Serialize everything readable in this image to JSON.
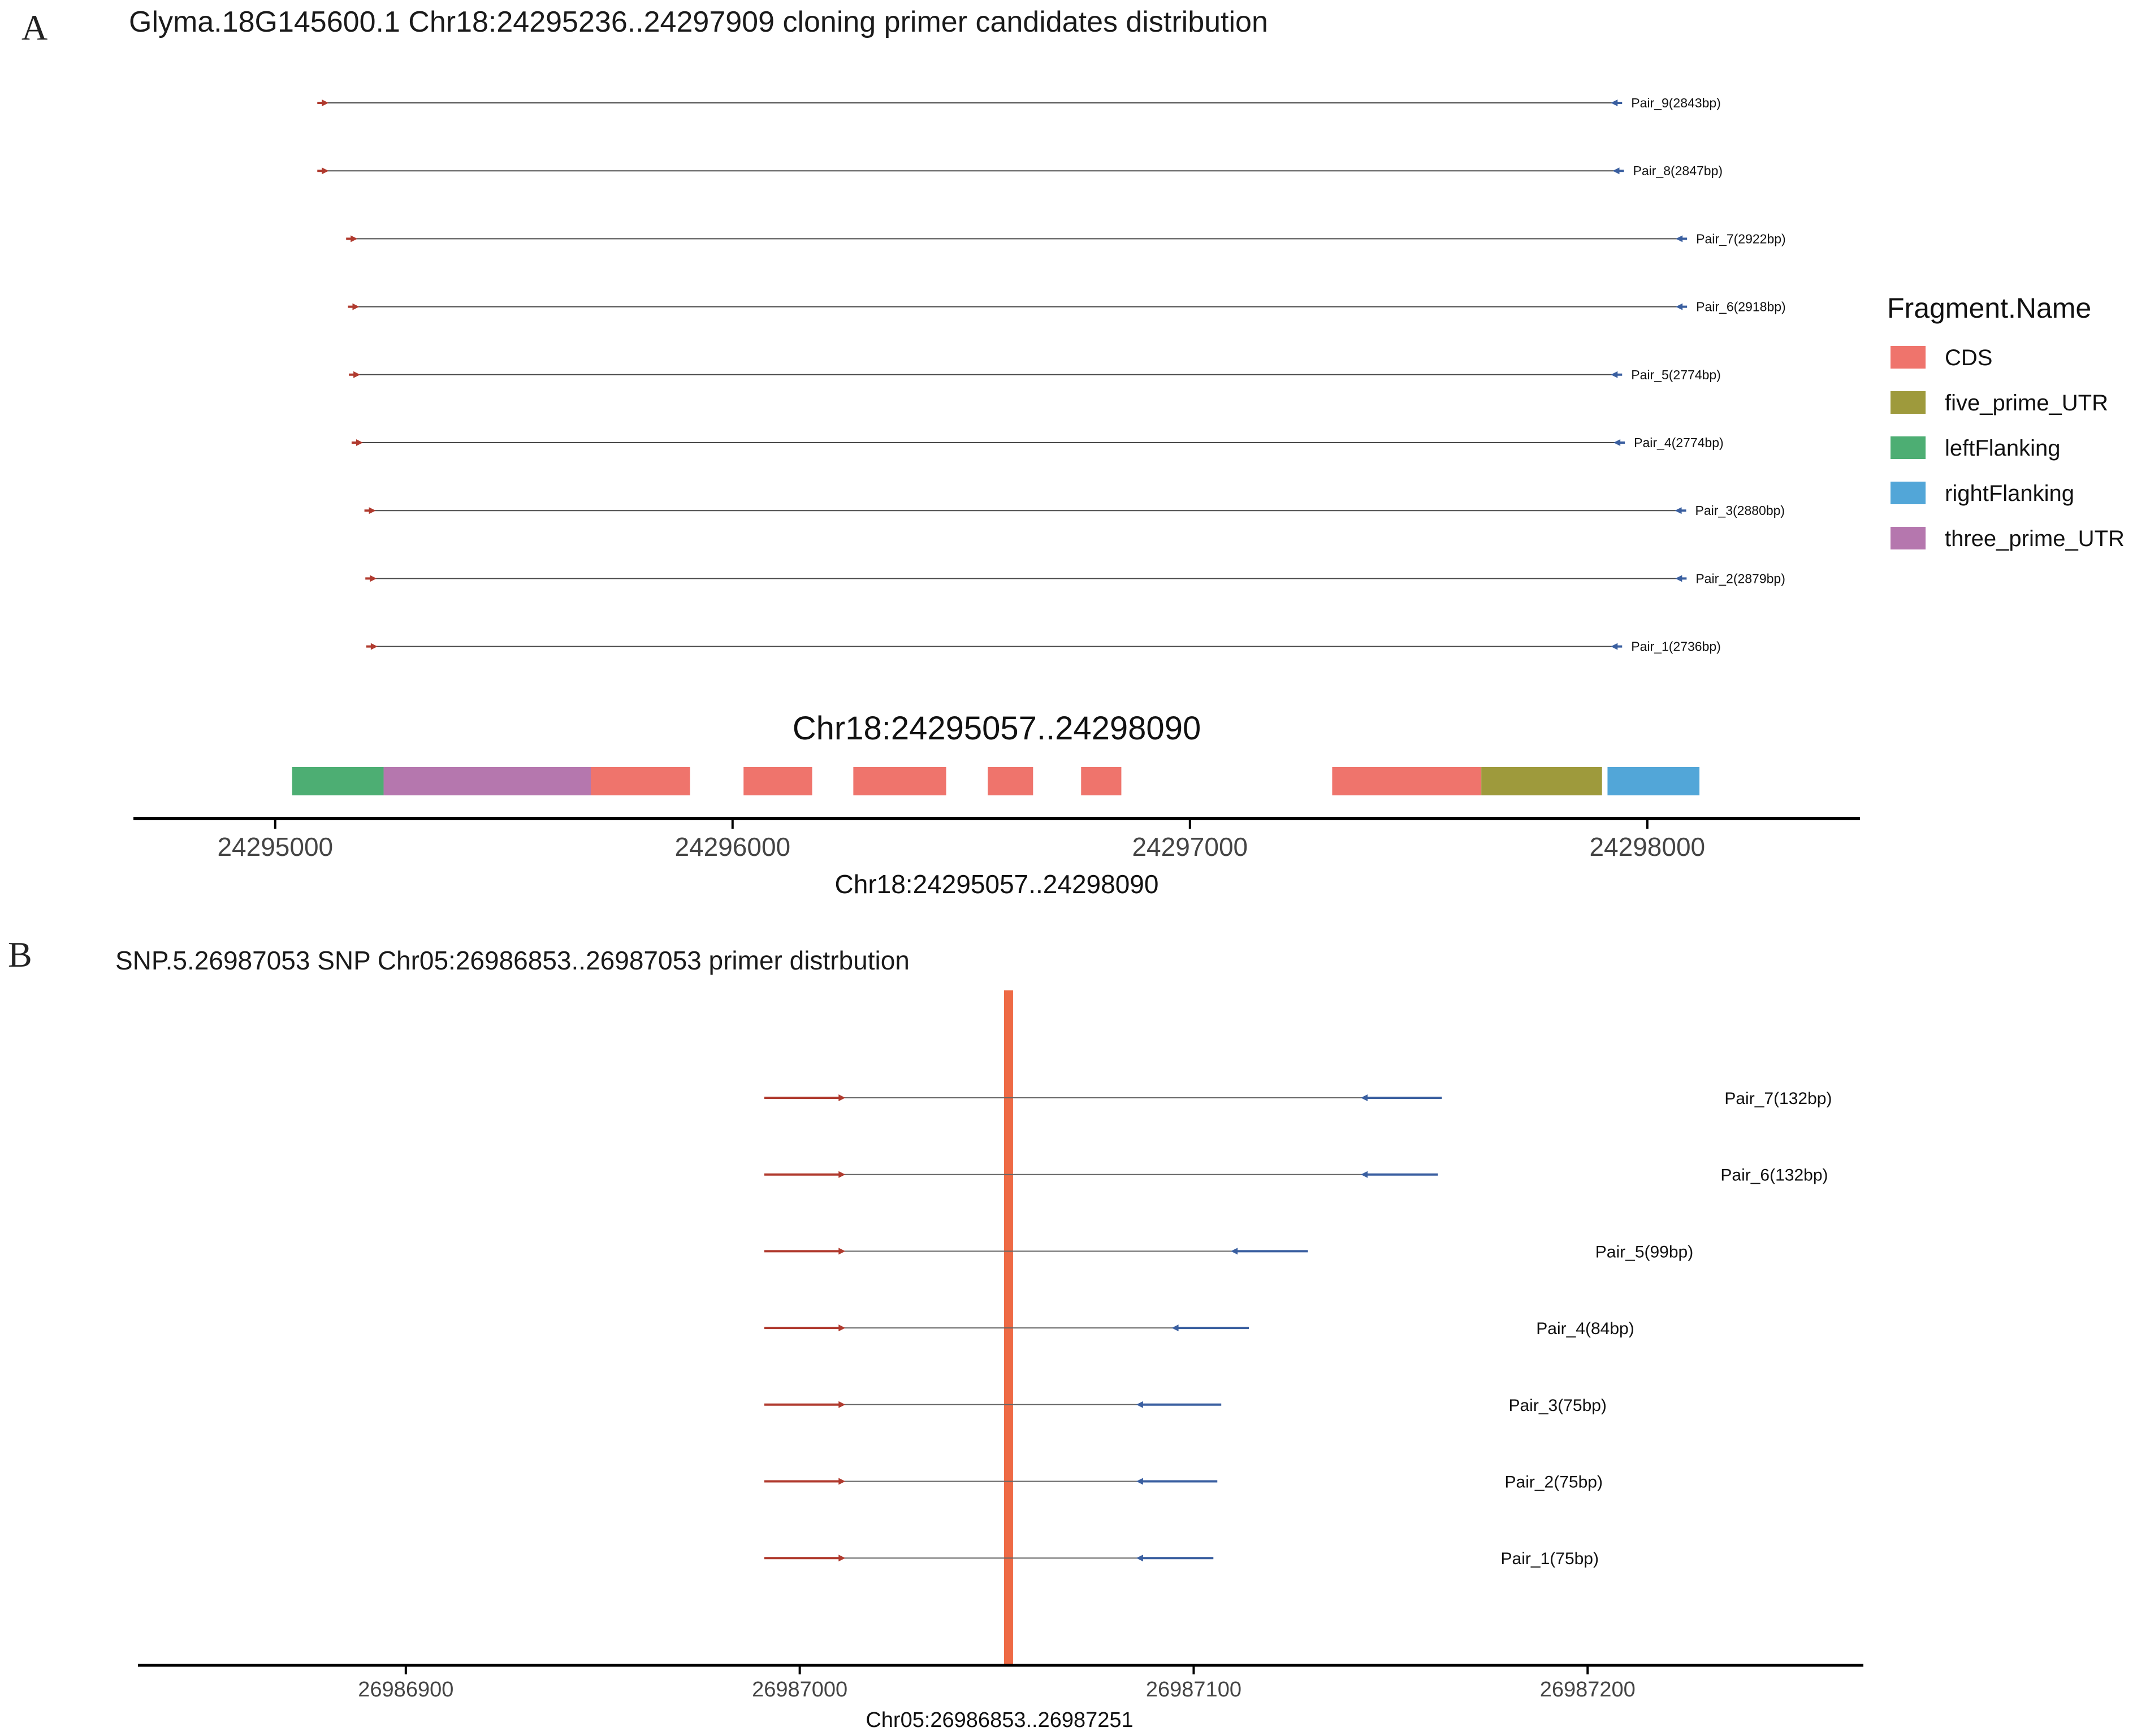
{
  "panels": {
    "a": {
      "letter": "A",
      "title": "Glyma.18G145600.1 Chr18:24295236..24297909 cloning primer candidates distribution"
    },
    "b": {
      "letter": "B",
      "title": "SNP.5.26987053 SNP Chr05:26986853..26987053 primer distrbution"
    }
  },
  "colors": {
    "forward_primer": "#B03A2E",
    "reverse_primer": "#3A5FA0",
    "amplicon_line": "#808080",
    "axis": "#000000",
    "snp_marker": "#EE6A45",
    "CDS": "#EF746C",
    "five_prime_UTR": "#9E9A3C",
    "leftFlanking": "#4DAE73",
    "rightFlanking": "#52A6D8",
    "three_prime_UTR": "#B577AE"
  },
  "chart_data": [
    {
      "id": "a",
      "type": "range-segments",
      "title": "Glyma.18G145600.1 Chr18:24295236..24297909 cloning primer candidates distribution",
      "gene_track_title": "Chr18:24295057..24298090",
      "xlabel": "Chr18:24295057..24298090",
      "xlim": [
        24294690,
        24298465
      ],
      "xticks": [
        24295000,
        24296000,
        24297000,
        24298000
      ],
      "xtick_labels": [
        "24295000",
        "24296000",
        "24297000",
        "24298000"
      ],
      "legend": {
        "title": "Fragment.Name",
        "position": "right",
        "entries": [
          "CDS",
          "five_prime_UTR",
          "leftFlanking",
          "rightFlanking",
          "three_prime_UTR"
        ]
      },
      "pairs": [
        {
          "label": "Pair_9(2843bp)",
          "start": 24295097,
          "end": 24297940
        },
        {
          "label": "Pair_8(2847bp)",
          "start": 24295097,
          "end": 24297944
        },
        {
          "label": "Pair_7(2922bp)",
          "start": 24295160,
          "end": 24298082
        },
        {
          "label": "Pair_6(2918bp)",
          "start": 24295164,
          "end": 24298082
        },
        {
          "label": "Pair_5(2774bp)",
          "start": 24295166,
          "end": 24297940
        },
        {
          "label": "Pair_4(2774bp)",
          "start": 24295172,
          "end": 24297946
        },
        {
          "label": "Pair_3(2880bp)",
          "start": 24295200,
          "end": 24298080
        },
        {
          "label": "Pair_2(2879bp)",
          "start": 24295202,
          "end": 24298081
        },
        {
          "label": "Pair_1(2736bp)",
          "start": 24295204,
          "end": 24297940
        }
      ],
      "fragments": [
        {
          "name": "leftFlanking",
          "start": 24295037,
          "end": 24295237
        },
        {
          "name": "three_prime_UTR",
          "start": 24295237,
          "end": 24295690
        },
        {
          "name": "CDS",
          "start": 24295690,
          "end": 24295907
        },
        {
          "name": "CDS",
          "start": 24296024,
          "end": 24296174
        },
        {
          "name": "CDS",
          "start": 24296264,
          "end": 24296467
        },
        {
          "name": "CDS",
          "start": 24296558,
          "end": 24296657
        },
        {
          "name": "CDS",
          "start": 24296762,
          "end": 24296850
        },
        {
          "name": "CDS",
          "start": 24297311,
          "end": 24297637
        },
        {
          "name": "five_prime_UTR",
          "start": 24297637,
          "end": 24297901
        },
        {
          "name": "rightFlanking",
          "start": 24297913,
          "end": 24298114
        }
      ]
    },
    {
      "id": "b",
      "type": "range-segments",
      "title": "SNP.5.26987053 SNP Chr05:26986853..26987053 primer distrbution",
      "xlabel": "Chr05:26986853..26987251",
      "xlim": [
        26986832,
        26987270
      ],
      "xticks": [
        26986900,
        26987000,
        26987100,
        26987200
      ],
      "xtick_labels": [
        "26986900",
        "26987000",
        "26987100",
        "26987200"
      ],
      "snp_position": 26987053,
      "pairs": [
        {
          "label": "Pair_7(132bp)",
          "fwd_start": 26986991,
          "fwd_end": 26987011,
          "rev_start": 26987143,
          "rev_end": 26987163
        },
        {
          "label": "Pair_6(132bp)",
          "fwd_start": 26986991,
          "fwd_end": 26987011,
          "rev_start": 26987143,
          "rev_end": 26987162
        },
        {
          "label": "Pair_5(99bp)",
          "fwd_start": 26986991,
          "fwd_end": 26987011,
          "rev_start": 26987110,
          "rev_end": 26987129
        },
        {
          "label": "Pair_4(84bp)",
          "fwd_start": 26986991,
          "fwd_end": 26987011,
          "rev_start": 26987095,
          "rev_end": 26987114
        },
        {
          "label": "Pair_3(75bp)",
          "fwd_start": 26986991,
          "fwd_end": 26987011,
          "rev_start": 26987086,
          "rev_end": 26987107
        },
        {
          "label": "Pair_2(75bp)",
          "fwd_start": 26986991,
          "fwd_end": 26987011,
          "rev_start": 26987086,
          "rev_end": 26987106
        },
        {
          "label": "Pair_1(75bp)",
          "fwd_start": 26986991,
          "fwd_end": 26987011,
          "rev_start": 26987086,
          "rev_end": 26987105
        }
      ]
    }
  ]
}
